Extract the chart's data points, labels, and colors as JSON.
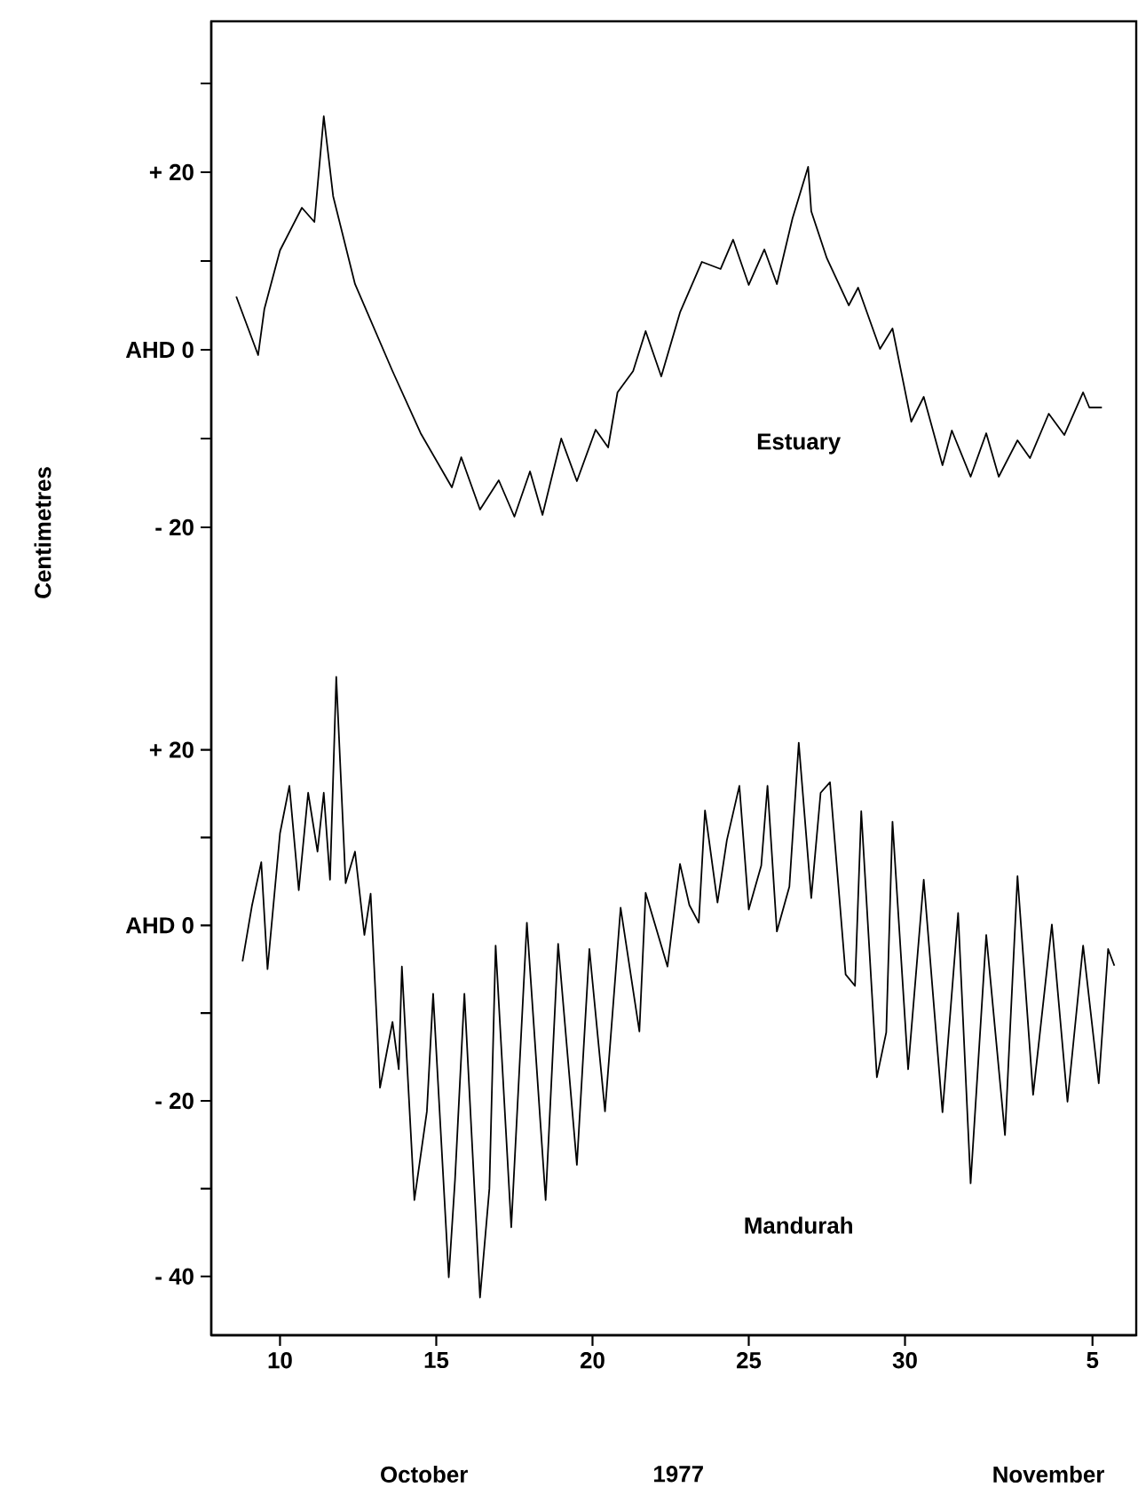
{
  "chart_data": [
    {
      "type": "line",
      "ylabel": "Centimetres",
      "xlim": [
        "1977-10-07T19:12",
        "1977-11-06T09:36"
      ],
      "ylim": [
        -32.6,
        37
      ],
      "tick_labels": "y",
      "yticks": [
        {
          "value": -20,
          "label": "- 20"
        },
        {
          "value": -10,
          "label": null
        },
        {
          "value": 0,
          "label": "AHD 0"
        },
        {
          "value": 10,
          "label": null
        },
        {
          "value": 20,
          "label": "+ 20"
        },
        {
          "value": 30,
          "label": null
        }
      ],
      "series": [
        {
          "name": "Estuary",
          "color": "#000000",
          "x": [
            "1977-10-08T14:24",
            "1977-10-09T07:12",
            "1977-10-09T12:00",
            "1977-10-10T00:00",
            "1977-10-10T16:48",
            "1977-10-11T02:24",
            "1977-10-11T09:36",
            "1977-10-11T16:48",
            "1977-10-12T09:36",
            "1977-10-13T14:24",
            "1977-10-14T12:00",
            "1977-10-15T12:00",
            "1977-10-15T19:12",
            "1977-10-16T09:36",
            "1977-10-17T00:00",
            "1977-10-17T12:00",
            "1977-10-18T00:00",
            "1977-10-18T09:36",
            "1977-10-19T00:00",
            "1977-10-19T12:00",
            "1977-10-20T02:24",
            "1977-10-20T12:00",
            "1977-10-20T19:12",
            "1977-10-21T07:12",
            "1977-10-21T16:48",
            "1977-10-22T04:48",
            "1977-10-22T19:12",
            "1977-10-23T12:00",
            "1977-10-24T02:24",
            "1977-10-24T12:00",
            "1977-10-25T00:00",
            "1977-10-25T12:00",
            "1977-10-25T21:36",
            "1977-10-26T09:36",
            "1977-10-26T21:36",
            "1977-10-27T00:00",
            "1977-10-27T12:00",
            "1977-10-28T04:48",
            "1977-10-28T12:00",
            "1977-10-29T04:48",
            "1977-10-29T14:24",
            "1977-10-30T04:48",
            "1977-10-30T14:24",
            "1977-10-31T04:48",
            "1977-10-31T12:00",
            "1977-11-01T02:24",
            "1977-11-01T14:24",
            "1977-11-02T00:00",
            "1977-11-02T14:24",
            "1977-11-03T00:00",
            "1977-11-03T14:24",
            "1977-11-04T02:24",
            "1977-11-04T16:48",
            "1977-11-04T21:36",
            "1977-11-05T07:12"
          ],
          "values": [
            6,
            -0.6,
            4.6,
            11.2,
            16,
            14.4,
            26.3,
            17.3,
            7.4,
            -2.4,
            -9.4,
            -15.5,
            -12.1,
            -18,
            -14.7,
            -18.8,
            -13.7,
            -18.6,
            -10,
            -14.8,
            -9,
            -11,
            -4.8,
            -2.4,
            2.1,
            -3,
            4.2,
            9.9,
            9.1,
            12.4,
            7.3,
            11.3,
            7.4,
            14.8,
            20.6,
            15.6,
            10.3,
            5,
            7,
            0.1,
            2.4,
            -8.1,
            -5.3,
            -13,
            -9.1,
            -14.3,
            -9.4,
            -14.3,
            -10.2,
            -12.2,
            -7.2,
            -9.6,
            -4.8,
            -6.5,
            -6.5
          ]
        }
      ]
    },
    {
      "type": "line",
      "xlabel": "1977",
      "annotations": [
        "October",
        "November"
      ],
      "xlim": [
        "1977-10-07T19:12",
        "1977-11-06T09:36"
      ],
      "ylim": [
        -46.7,
        32.6
      ],
      "xticks": [
        {
          "value": "1977-10-10",
          "label": "10"
        },
        {
          "value": "1977-10-15",
          "label": "15"
        },
        {
          "value": "1977-10-20",
          "label": "20"
        },
        {
          "value": "1977-10-25",
          "label": "25"
        },
        {
          "value": "1977-10-30",
          "label": "30"
        },
        {
          "value": "1977-11-05",
          "label": "5"
        }
      ],
      "yticks": [
        {
          "value": -40,
          "label": "- 40"
        },
        {
          "value": -30,
          "label": null
        },
        {
          "value": -20,
          "label": "- 20"
        },
        {
          "value": -10,
          "label": null
        },
        {
          "value": 0,
          "label": "AHD 0"
        },
        {
          "value": 10,
          "label": null
        },
        {
          "value": 20,
          "label": "+ 20"
        }
      ],
      "series": [
        {
          "name": "Mandurah",
          "color": "#000000",
          "x": [
            "1977-10-08T19:12",
            "1977-10-09T02:24",
            "1977-10-09T09:36",
            "1977-10-09T14:24",
            "1977-10-10T00:00",
            "1977-10-10T07:12",
            "1977-10-10T14:24",
            "1977-10-10T21:36",
            "1977-10-11T04:48",
            "1977-10-11T09:36",
            "1977-10-11T14:24",
            "1977-10-11T19:12",
            "1977-10-12T02:24",
            "1977-10-12T09:36",
            "1977-10-12T16:48",
            "1977-10-12T21:36",
            "1977-10-13T04:48",
            "1977-10-13T14:24",
            "1977-10-13T19:12",
            "1977-10-13T21:36",
            "1977-10-14T07:12",
            "1977-10-14T16:48",
            "1977-10-14T21:36",
            "1977-10-15T09:36",
            "1977-10-15T14:24",
            "1977-10-15T21:36",
            "1977-10-16T09:36",
            "1977-10-16T16:48",
            "1977-10-16T21:36",
            "1977-10-17T09:36",
            "1977-10-17T21:36",
            "1977-10-18T12:00",
            "1977-10-18T21:36",
            "1977-10-19T12:00",
            "1977-10-19T21:36",
            "1977-10-20T09:36",
            "1977-10-20T21:36",
            "1977-10-21T12:00",
            "1977-10-21T16:48",
            "1977-10-22T09:36",
            "1977-10-22T19:12",
            "1977-10-23T02:24",
            "1977-10-23T09:36",
            "1977-10-23T14:24",
            "1977-10-24T00:00",
            "1977-10-24T07:12",
            "1977-10-24T16:48",
            "1977-10-25T00:00",
            "1977-10-25T09:36",
            "1977-10-25T14:24",
            "1977-10-25T21:36",
            "1977-10-26T07:12",
            "1977-10-26T14:24",
            "1977-10-27T00:00",
            "1977-10-27T07:12",
            "1977-10-27T14:24",
            "1977-10-28T02:24",
            "1977-10-28T09:36",
            "1977-10-28T14:24",
            "1977-10-29T02:24",
            "1977-10-29T09:36",
            "1977-10-29T14:24",
            "1977-10-30T02:24",
            "1977-10-30T14:24",
            "1977-10-31T04:48",
            "1977-10-31T16:48",
            "1977-11-01T02:24",
            "1977-11-01T14:24",
            "1977-11-02T04:48",
            "1977-11-02T14:24",
            "1977-11-03T02:24",
            "1977-11-03T16:48",
            "1977-11-04T04:48",
            "1977-11-04T16:48",
            "1977-11-05T04:48",
            "1977-11-05T12:00",
            "1977-11-05T16:48"
          ],
          "values": [
            -4.1,
            2.2,
            7.2,
            -5,
            10.5,
            15.9,
            4,
            15.1,
            8.4,
            15.1,
            5.2,
            28.3,
            4.8,
            8.4,
            -1.1,
            3.6,
            -18.5,
            -11,
            -16.4,
            -4.7,
            -31.3,
            -21.2,
            -7.8,
            -40.1,
            -29,
            -7.8,
            -42.4,
            -30,
            -2.3,
            -34.4,
            0.3,
            -31.3,
            -2.1,
            -27.3,
            -2.7,
            -21.2,
            2,
            -12.1,
            3.7,
            -4.7,
            7,
            2.3,
            0.3,
            13.1,
            2.6,
            9.7,
            15.9,
            1.8,
            6.8,
            15.9,
            -0.7,
            4.4,
            20.8,
            3.1,
            15.1,
            16.3,
            -5.6,
            -6.9,
            13,
            -17.3,
            -12.2,
            11.8,
            -16.4,
            5.2,
            -21.3,
            1.4,
            -29.4,
            -1.1,
            -23.9,
            5.6,
            -19.3,
            0.1,
            -20.1,
            -2.3,
            -18,
            -2.7,
            -4.6
          ]
        }
      ]
    }
  ]
}
